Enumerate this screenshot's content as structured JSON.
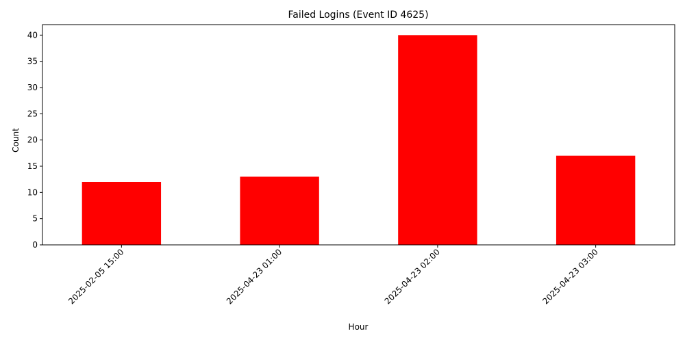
{
  "chart_data": {
    "type": "bar",
    "title": "Failed Logins (Event ID 4625)",
    "xlabel": "Hour",
    "ylabel": "Count",
    "categories": [
      "2025-02-05 15:00",
      "2025-04-23 01:00",
      "2025-04-23 02:00",
      "2025-04-23 03:00"
    ],
    "values": [
      12,
      13,
      40,
      17
    ],
    "ylim": [
      0,
      42
    ],
    "yticks": [
      0,
      5,
      10,
      15,
      20,
      25,
      30,
      35,
      40
    ],
    "bar_color": "#ff0000",
    "grid": false,
    "legend": "none"
  }
}
